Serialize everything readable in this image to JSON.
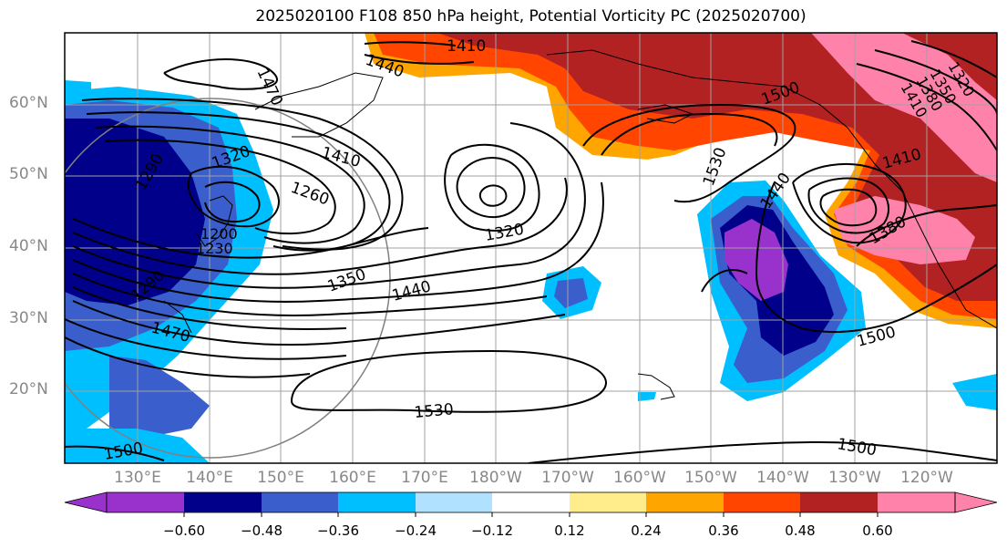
{
  "title": "2025020100 F108 850 hPa height, Potential Vorticity PC (2025020700)",
  "lat_labels": [
    "60°N",
    "50°N",
    "40°N",
    "30°N",
    "20°N"
  ],
  "lon_labels": [
    "130°E",
    "140°E",
    "150°E",
    "160°E",
    "170°E",
    "180°W",
    "170°W",
    "160°W",
    "150°W",
    "140°W",
    "130°W",
    "120°W"
  ],
  "contour_labels": [
    "1410",
    "1440",
    "1470",
    "1320",
    "1290",
    "1260",
    "1410",
    "1350",
    "1440",
    "1470",
    "1500",
    "1530",
    "1320",
    "1500",
    "1530",
    "1440",
    "1410",
    "1380",
    "1500",
    "1500",
    "1200",
    "1230",
    "1290",
    "1320",
    "1350",
    "1380",
    "1410"
  ],
  "colorbar": {
    "ticks": [
      "−0.60",
      "−0.48",
      "−0.36",
      "−0.24",
      "−0.12",
      "0.12",
      "0.24",
      "0.36",
      "0.48",
      "0.60"
    ],
    "colors": [
      "#9932cc",
      "#00008b",
      "#3a5fcd",
      "#00bfff",
      "#b0e2ff",
      "#ffffff",
      "#ffec8b",
      "#ffa500",
      "#ff4500",
      "#b22222",
      "#ff82ab"
    ]
  }
}
